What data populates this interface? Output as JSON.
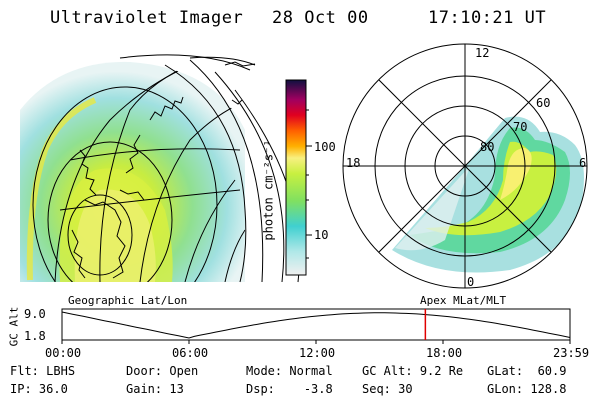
{
  "header": {
    "instrument": "Ultraviolet Imager",
    "date": "28 Oct 00",
    "time": "17:10:21 UT"
  },
  "colorbar": {
    "label": "photon cm⁻²s⁻¹",
    "ticks": [
      "100",
      "10"
    ]
  },
  "polar_plot": {
    "mlt_labels": {
      "top": "12",
      "left": "18",
      "right": "6",
      "bottom": "0"
    },
    "lat_labels": [
      "60",
      "70",
      "80"
    ]
  },
  "panels": {
    "left_label": "Geographic Lat/Lon",
    "right_label": "Apex MLat/MLT"
  },
  "orbit": {
    "y_axis_title": "GC Alt",
    "y_top": "9.0",
    "y_bottom": "1.8",
    "x_ticks": [
      "00:00",
      "06:00",
      "12:00",
      "18:00",
      "23:59"
    ],
    "current_time_marker": "17:10",
    "marker_color": "#e00000"
  },
  "status": {
    "row1": [
      {
        "label": "Flt:",
        "value": "LBHS"
      },
      {
        "label": "Door:",
        "value": "Open"
      },
      {
        "label": "Mode:",
        "value": "Normal"
      },
      {
        "label": "GC Alt:",
        "value": "9.2 Re"
      },
      {
        "label": "GLat:",
        "value": "60.9"
      }
    ],
    "row2": [
      {
        "label": "IP:",
        "value": "36.0"
      },
      {
        "label": "Gain:",
        "value": "13"
      },
      {
        "label": "Dsp:",
        "value": "-3.8"
      },
      {
        "label": "Seq:",
        "value": "30"
      },
      {
        "label": "GLon:",
        "value": "128.8"
      }
    ]
  }
}
